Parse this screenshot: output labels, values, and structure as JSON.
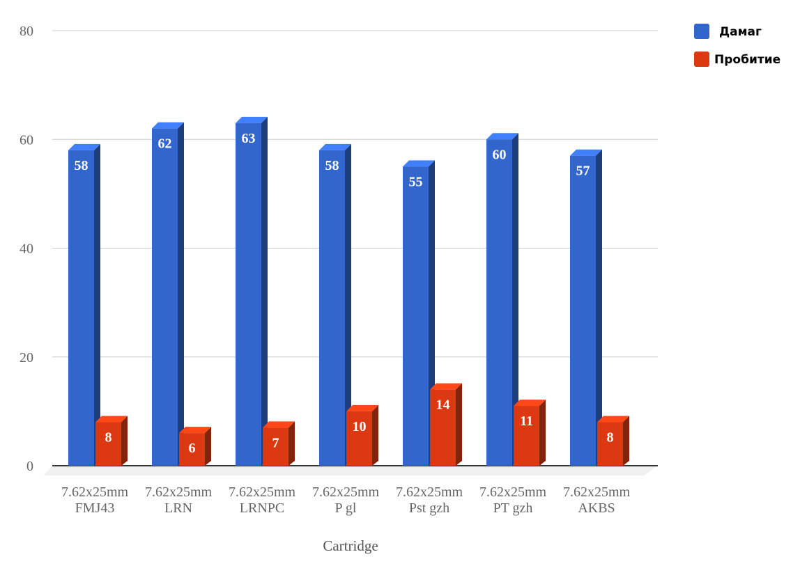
{
  "chart_data": {
    "type": "bar",
    "title": "",
    "xlabel": "Cartridge",
    "ylabel": "",
    "ylim": [
      0,
      80
    ],
    "yticks": [
      0,
      20,
      40,
      60,
      80
    ],
    "grid": true,
    "legend_position": "top-right",
    "categories": [
      [
        "7.62x25mm",
        "FMJ43"
      ],
      [
        "7.62x25mm",
        "LRN"
      ],
      [
        "7.62x25mm",
        "LRNPC"
      ],
      [
        "7.62x25mm",
        "P gl"
      ],
      [
        "7.62x25mm",
        "Pst gzh"
      ],
      [
        "7.62x25mm",
        "PT gzh"
      ],
      [
        "7.62x25mm",
        "AKBS"
      ]
    ],
    "series": [
      {
        "name": "Дамаг",
        "color": "#3366cc",
        "values": [
          58,
          62,
          63,
          58,
          55,
          60,
          57
        ]
      },
      {
        "name": "Пробитие",
        "color": "#dc3912",
        "values": [
          8,
          6,
          7,
          10,
          14,
          11,
          8
        ]
      }
    ]
  }
}
